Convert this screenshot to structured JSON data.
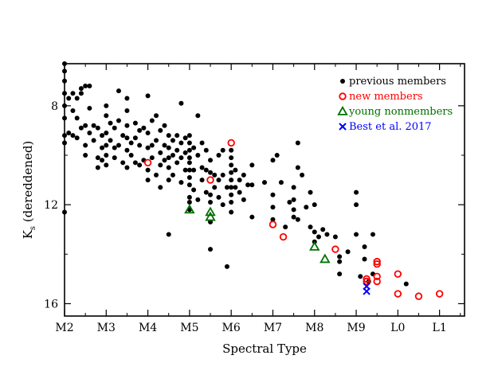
{
  "chart_data": {
    "type": "scatter",
    "xlabel": "Spectral Type",
    "ylabel_main": "K",
    "ylabel_sub": "s",
    "ylabel_rest": "  (dereddened)",
    "x_tick_values": [
      0,
      1,
      2,
      3,
      4,
      5,
      6,
      7,
      8,
      9
    ],
    "x_tick_labels": [
      "M2",
      "M3",
      "M4",
      "M5",
      "M6",
      "M7",
      "M8",
      "M9",
      "L0",
      "L1"
    ],
    "x_minor_step": 0.5,
    "xlim": [
      0,
      9.6
    ],
    "y_tick_values": [
      8,
      12,
      16
    ],
    "y_tick_labels": [
      "8",
      "12",
      "16"
    ],
    "y_minor_step": 2,
    "ylim": [
      16.5,
      6.3
    ],
    "y_inverted": true,
    "grid": false,
    "legend_position": "top-right",
    "series": [
      {
        "name": "previous members",
        "marker": "dot",
        "color": "#000000",
        "points": [
          [
            0,
            6.3
          ],
          [
            0,
            6.6
          ],
          [
            0,
            7.0
          ],
          [
            0,
            7.5
          ],
          [
            0,
            8.0
          ],
          [
            0,
            8.5
          ],
          [
            0,
            9.2
          ],
          [
            0,
            9.5
          ],
          [
            0,
            12.3
          ],
          [
            0.1,
            7.7
          ],
          [
            0.1,
            9.1
          ],
          [
            0.2,
            7.5
          ],
          [
            0.2,
            8.2
          ],
          [
            0.2,
            9.2
          ],
          [
            0.3,
            7.7
          ],
          [
            0.3,
            8.5
          ],
          [
            0.3,
            9.3
          ],
          [
            0.4,
            7.3
          ],
          [
            0.4,
            7.5
          ],
          [
            0.4,
            8.9
          ],
          [
            0.5,
            7.2
          ],
          [
            0.5,
            8.8
          ],
          [
            0.5,
            9.6
          ],
          [
            0.5,
            10.0
          ],
          [
            0.6,
            7.2
          ],
          [
            0.6,
            8.1
          ],
          [
            0.6,
            9.1
          ],
          [
            0.7,
            8.8
          ],
          [
            0.7,
            9.4
          ],
          [
            0.8,
            8.9
          ],
          [
            0.8,
            10.1
          ],
          [
            0.8,
            10.5
          ],
          [
            0.9,
            9.2
          ],
          [
            0.9,
            9.7
          ],
          [
            0.9,
            10.2
          ],
          [
            1,
            8.0
          ],
          [
            1,
            8.4
          ],
          [
            1,
            9.1
          ],
          [
            1,
            9.6
          ],
          [
            1,
            10.0
          ],
          [
            1,
            10.4
          ],
          [
            1.1,
            8.7
          ],
          [
            1.1,
            9.4
          ],
          [
            1.2,
            8.9
          ],
          [
            1.2,
            9.7
          ],
          [
            1.2,
            10.1
          ],
          [
            1.3,
            7.4
          ],
          [
            1.3,
            8.6
          ],
          [
            1.3,
            9.6
          ],
          [
            1.4,
            9.2
          ],
          [
            1.4,
            10.3
          ],
          [
            1.5,
            7.7
          ],
          [
            1.5,
            8.2
          ],
          [
            1.5,
            8.8
          ],
          [
            1.5,
            9.3
          ],
          [
            1.5,
            9.8
          ],
          [
            1.5,
            10.5
          ],
          [
            1.6,
            9.5
          ],
          [
            1.6,
            10.0
          ],
          [
            1.7,
            8.7
          ],
          [
            1.7,
            9.3
          ],
          [
            1.7,
            10.3
          ],
          [
            1.8,
            9.0
          ],
          [
            1.8,
            9.6
          ],
          [
            1.8,
            10.4
          ],
          [
            1.9,
            8.9
          ],
          [
            1.9,
            10.2
          ],
          [
            2,
            7.6
          ],
          [
            2,
            9.1
          ],
          [
            2,
            9.7
          ],
          [
            2,
            10.6
          ],
          [
            2,
            11.0
          ],
          [
            2.1,
            8.6
          ],
          [
            2.1,
            9.6
          ],
          [
            2.1,
            10.1
          ],
          [
            2.2,
            8.4
          ],
          [
            2.2,
            9.4
          ],
          [
            2.2,
            10.8
          ],
          [
            2.3,
            9.0
          ],
          [
            2.3,
            9.9
          ],
          [
            2.3,
            10.4
          ],
          [
            2.3,
            11.3
          ],
          [
            2.4,
            8.8
          ],
          [
            2.4,
            9.6
          ],
          [
            2.4,
            10.2
          ],
          [
            2.5,
            9.2
          ],
          [
            2.5,
            9.7
          ],
          [
            2.5,
            10.1
          ],
          [
            2.5,
            10.5
          ],
          [
            2.5,
            11.0
          ],
          [
            2.5,
            13.2
          ],
          [
            2.6,
            9.4
          ],
          [
            2.6,
            10.0
          ],
          [
            2.6,
            10.8
          ],
          [
            2.7,
            9.2
          ],
          [
            2.7,
            9.8
          ],
          [
            2.7,
            10.3
          ],
          [
            2.8,
            7.9
          ],
          [
            2.8,
            9.5
          ],
          [
            2.8,
            10.1
          ],
          [
            2.8,
            11.1
          ],
          [
            2.9,
            9.3
          ],
          [
            2.9,
            9.9
          ],
          [
            2.9,
            10.6
          ],
          [
            3,
            9.2
          ],
          [
            3,
            9.5
          ],
          [
            3,
            9.8
          ],
          [
            3,
            10.1
          ],
          [
            3,
            10.3
          ],
          [
            3,
            10.6
          ],
          [
            3,
            10.9
          ],
          [
            3,
            11.2
          ],
          [
            3,
            11.7
          ],
          [
            3,
            11.9
          ],
          [
            3,
            12.2
          ],
          [
            3.1,
            9.7
          ],
          [
            3.1,
            10.6
          ],
          [
            3.1,
            11.4
          ],
          [
            3.2,
            8.4
          ],
          [
            3.2,
            10.0
          ],
          [
            3.2,
            11.8
          ],
          [
            3.3,
            9.5
          ],
          [
            3.3,
            10.5
          ],
          [
            3.3,
            11.0
          ],
          [
            3.4,
            9.8
          ],
          [
            3.4,
            10.6
          ],
          [
            3.4,
            11.5
          ],
          [
            3.5,
            10.2
          ],
          [
            3.5,
            10.7
          ],
          [
            3.5,
            11.6
          ],
          [
            3.5,
            11.9
          ],
          [
            3.5,
            12.7
          ],
          [
            3.5,
            13.8
          ],
          [
            3.6,
            10.8
          ],
          [
            3.6,
            11.3
          ],
          [
            3.7,
            10.0
          ],
          [
            3.7,
            11.0
          ],
          [
            3.7,
            11.7
          ],
          [
            3.8,
            9.8
          ],
          [
            3.8,
            10.8
          ],
          [
            3.8,
            12.0
          ],
          [
            3.9,
            11.3
          ],
          [
            3.9,
            14.5
          ],
          [
            4,
            9.8
          ],
          [
            4,
            10.1
          ],
          [
            4,
            10.4
          ],
          [
            4,
            10.7
          ],
          [
            4,
            11.0
          ],
          [
            4,
            11.3
          ],
          [
            4,
            11.6
          ],
          [
            4,
            11.9
          ],
          [
            4,
            12.3
          ],
          [
            4.1,
            10.6
          ],
          [
            4.1,
            11.3
          ],
          [
            4.2,
            11.0
          ],
          [
            4.2,
            11.5
          ],
          [
            4.3,
            10.8
          ],
          [
            4.3,
            11.8
          ],
          [
            4.4,
            11.2
          ],
          [
            4.5,
            10.4
          ],
          [
            4.5,
            11.2
          ],
          [
            4.5,
            12.5
          ],
          [
            4.8,
            11.1
          ],
          [
            5,
            10.2
          ],
          [
            5,
            11.6
          ],
          [
            5,
            12.1
          ],
          [
            5,
            12.6
          ],
          [
            5.1,
            10.0
          ],
          [
            5.2,
            11.1
          ],
          [
            5.3,
            12.9
          ],
          [
            5.4,
            11.9
          ],
          [
            5.5,
            11.3
          ],
          [
            5.5,
            11.8
          ],
          [
            5.5,
            12.2
          ],
          [
            5.5,
            12.5
          ],
          [
            5.6,
            9.5
          ],
          [
            5.6,
            10.5
          ],
          [
            5.6,
            12.6
          ],
          [
            5.7,
            10.8
          ],
          [
            5.8,
            12.1
          ],
          [
            5.9,
            11.5
          ],
          [
            5.9,
            12.9
          ],
          [
            6,
            12.0
          ],
          [
            6,
            13.1
          ],
          [
            6,
            13.5
          ],
          [
            6.1,
            13.3
          ],
          [
            6.2,
            13.0
          ],
          [
            6.3,
            13.2
          ],
          [
            6.5,
            13.3
          ],
          [
            6.6,
            14.1
          ],
          [
            6.6,
            14.3
          ],
          [
            6.6,
            14.8
          ],
          [
            6.8,
            13.9
          ],
          [
            7,
            11.5
          ],
          [
            7,
            12.0
          ],
          [
            7,
            13.2
          ],
          [
            7.1,
            14.9
          ],
          [
            7.2,
            13.7
          ],
          [
            7.2,
            14.2
          ],
          [
            7.3,
            15.1
          ],
          [
            7.4,
            14.8
          ],
          [
            7.4,
            13.2
          ],
          [
            8.2,
            15.2
          ]
        ]
      },
      {
        "name": "new members",
        "marker": "open-circle",
        "color": "#ff0000",
        "points": [
          [
            2,
            10.3
          ],
          [
            3.5,
            11.0
          ],
          [
            4,
            9.5
          ],
          [
            5,
            12.8
          ],
          [
            5.25,
            13.3
          ],
          [
            6.5,
            13.8
          ],
          [
            7.25,
            15.0
          ],
          [
            7.25,
            15.1
          ],
          [
            7.5,
            14.3
          ],
          [
            7.5,
            14.4
          ],
          [
            7.5,
            14.9
          ],
          [
            7.5,
            15.1
          ],
          [
            8,
            14.8
          ],
          [
            8,
            15.6
          ],
          [
            8.5,
            15.7
          ],
          [
            9,
            15.6
          ]
        ]
      },
      {
        "name": "young nonmembers",
        "marker": "open-triangle",
        "color": "#007000",
        "points": [
          [
            3,
            12.2
          ],
          [
            3.5,
            12.3
          ],
          [
            3.5,
            12.5
          ],
          [
            6,
            13.7
          ],
          [
            6.25,
            14.2
          ]
        ]
      },
      {
        "name": "Best et al. 2017",
        "marker": "cross",
        "color": "#0000ff",
        "points": [
          [
            7.25,
            15.3
          ],
          [
            7.25,
            15.5
          ]
        ]
      }
    ]
  }
}
